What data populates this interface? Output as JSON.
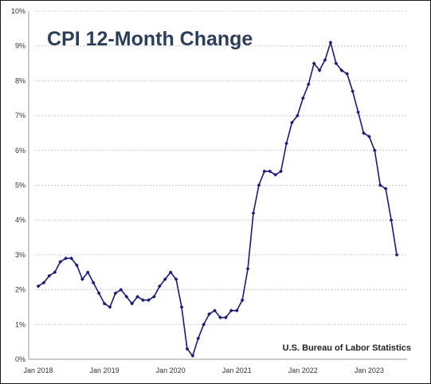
{
  "chart_data": {
    "type": "line",
    "title": "CPI 12-Month Change",
    "source_note": "U.S. Bureau of Labor Statistics",
    "xlabel": "",
    "ylabel": "",
    "ylim": [
      0,
      10
    ],
    "grid": true,
    "y_ticks": [
      0,
      1,
      2,
      3,
      4,
      5,
      6,
      7,
      8,
      9,
      10
    ],
    "y_tick_labels": [
      "0%",
      "1%",
      "2%",
      "3%",
      "4%",
      "5%",
      "6%",
      "7%",
      "8%",
      "9%",
      "10%"
    ],
    "x_start": "Jan 2018",
    "x_ticks": [
      {
        "label": "Jan 2018",
        "index": 0
      },
      {
        "label": "Jan 2019",
        "index": 12
      },
      {
        "label": "Jan 2020",
        "index": 24
      },
      {
        "label": "Jan 2021",
        "index": 36
      },
      {
        "label": "Jan 2022",
        "index": 48
      },
      {
        "label": "Jan 2023",
        "index": 60
      }
    ],
    "line_color": "#1a1a7a",
    "series": [
      {
        "values": [
          2.1,
          2.2,
          2.4,
          2.5,
          2.8,
          2.9,
          2.9,
          2.7,
          2.3,
          2.5,
          2.2,
          1.9,
          1.6,
          1.5,
          1.9,
          2.0,
          1.8,
          1.6,
          1.8,
          1.7,
          1.7,
          1.8,
          2.1,
          2.3,
          2.5,
          2.3,
          1.5,
          0.3,
          0.1,
          0.6,
          1.0,
          1.3,
          1.4,
          1.2,
          1.2,
          1.4,
          1.4,
          1.7,
          2.6,
          4.2,
          5.0,
          5.4,
          5.4,
          5.3,
          5.4,
          6.2,
          6.8,
          7.0,
          7.5,
          7.9,
          8.5,
          8.3,
          8.6,
          9.1,
          8.5,
          8.3,
          8.2,
          7.7,
          7.1,
          6.5,
          6.4,
          6.0,
          5.0,
          4.9,
          4.0,
          3.0
        ]
      }
    ]
  }
}
